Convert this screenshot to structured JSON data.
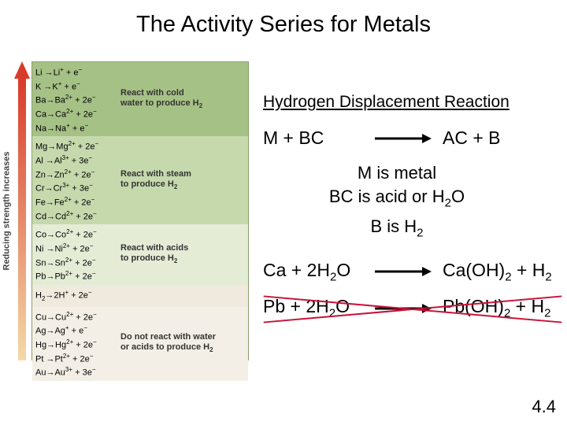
{
  "title": "The Activity Series for Metals",
  "vertical_label": "Reducing strength increases",
  "arrow_gradient_top": "#d93a2a",
  "arrow_gradient_bottom": "#f4d9a8",
  "panel_border": "#8a9e6e",
  "bands": [
    {
      "bg": "#a6c186",
      "desc_html": "React with cold<br>water to produce H<sub>2</sub>",
      "rows": [
        "Li →Li<sup>+</sup> + e<sup>−</sup>",
        "K →K<sup>+</sup> + e<sup>−</sup>",
        "Ba→Ba<sup>2+</sup> + 2e<sup>−</sup>",
        "Ca→Ca<sup>2+</sup> + 2e<sup>−</sup>",
        "Na→Na<sup>+</sup> + e<sup>−</sup>"
      ]
    },
    {
      "bg": "#c6d9ad",
      "desc_html": "React with steam<br>to produce H<sub>2</sub>",
      "rows": [
        "Mg→Mg<sup>2+</sup> + 2e<sup>−</sup>",
        "Al →Al<sup>3+</sup> + 3e<sup>−</sup>",
        "Zn→Zn<sup>2+</sup> + 2e<sup>−</sup>",
        "Cr→Cr<sup>3+</sup> + 3e<sup>−</sup>",
        "Fe→Fe<sup>2+</sup> + 2e<sup>−</sup>",
        "Cd→Cd<sup>2+</sup> + 2e<sup>−</sup>"
      ]
    },
    {
      "bg": "#e4ecd6",
      "desc_html": "React with acids<br>to produce H<sub>2</sub>",
      "rows": [
        "Co→Co<sup>2+</sup> + 2e<sup>−</sup>",
        "Ni →Ni<sup>2+</sup> + 2e<sup>−</sup>",
        "Sn→Sn<sup>2+</sup> + 2e<sup>−</sup>",
        "Pb→Pb<sup>2+</sup> + 2e<sup>−</sup>"
      ]
    },
    {
      "bg": "#f0eade",
      "desc_html": "",
      "rows": [
        "H<sub>2</sub>→2H<sup>+</sup> + 2e<sup>−</sup>"
      ]
    },
    {
      "bg": "#f4efe6",
      "desc_html": "Do not react with water<br>or acids to produce H<sub>2</sub>",
      "rows": [
        "Cu→Cu<sup>2+</sup> + 2e<sup>−</sup>",
        "Ag→Ag<sup>+</sup> + e<sup>−</sup>",
        "Hg→Hg<sup>2+</sup> + 2e<sup>−</sup>",
        "Pt →Pt<sup>2+</sup> + 2e<sup>−</sup>",
        "Au→Au<sup>3+</sup> + 3e<sup>−</sup>"
      ]
    }
  ],
  "right": {
    "heading": "Hydrogen Displacement Reaction",
    "eq1": {
      "lhs": "M + BC",
      "rhs": "AC + B"
    },
    "defs": [
      "M is metal",
      "BC is acid or H<sub>2</sub>O",
      "B is H<sub>2</sub>"
    ],
    "eq2": {
      "lhs": "Ca + 2H<sub>2</sub>O",
      "rhs": "Ca(OH)<sub>2</sub> + H<sub>2</sub>"
    },
    "eq3": {
      "lhs": "Pb + 2H<sub>2</sub>O",
      "rhs": "Pb(OH)<sub>2</sub> + H<sub>2</sub>",
      "crossed": true,
      "cross_color": "#c7143a"
    }
  },
  "arrow_color": "#000000",
  "page_number": "4.4"
}
